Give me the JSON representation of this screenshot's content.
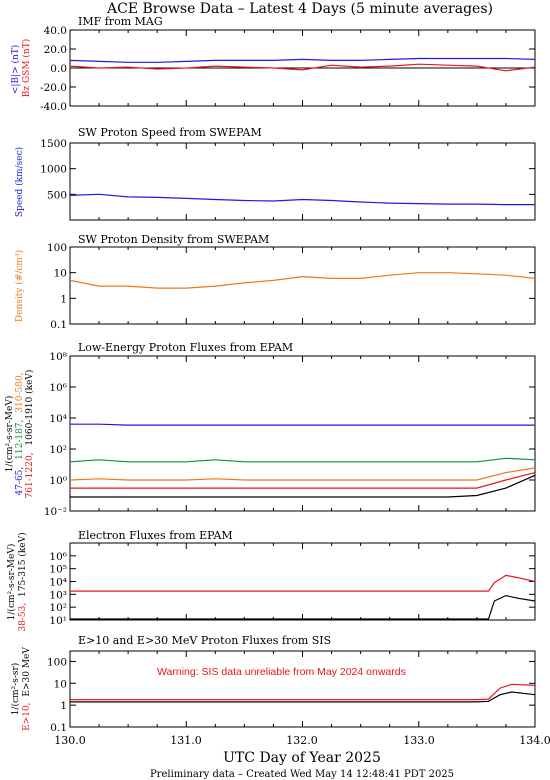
{
  "figure_title": "ACE Browse Data – Latest 4 Days (5 minute averages)",
  "x_axis": {
    "label": "UTC Day of Year 2025",
    "ticks": [
      "130.0",
      "131.0",
      "132.0",
      "133.0",
      "134.0"
    ],
    "range": [
      130.0,
      134.0
    ]
  },
  "footer": "Preliminary data – Created Wed May 14 12:48:41 PDT 2025",
  "colors": {
    "red": "#e8161a",
    "blue": "#1c1ce0",
    "orange": "#f07818",
    "green": "#0f8f38",
    "black": "#000000"
  },
  "chart_data": [
    {
      "type": "line",
      "title": "IMF from MAG",
      "ylabel": [
        "<|B|> (nT)",
        "Bz GSM (nT)"
      ],
      "yscale": "linear",
      "ylim": [
        -40,
        40
      ],
      "yticks": [
        "40.0",
        "20.0",
        "0.0",
        "-20.0",
        "-40.0"
      ],
      "zero_line": true,
      "series": [
        {
          "name": "<|B|>",
          "color": "blue",
          "x": [
            130.0,
            130.25,
            130.5,
            130.75,
            131.0,
            131.25,
            131.5,
            131.75,
            132.0,
            132.25,
            132.5,
            132.75,
            133.0,
            133.25,
            133.5,
            133.75,
            134.0
          ],
          "y": [
            8,
            7,
            6,
            6,
            7,
            8,
            8,
            8,
            9,
            8,
            8,
            9,
            10,
            10,
            10,
            10,
            9
          ]
        },
        {
          "name": "Bz GSM",
          "color": "red",
          "x": [
            130.0,
            130.25,
            130.5,
            130.75,
            131.0,
            131.25,
            131.5,
            131.75,
            132.0,
            132.25,
            132.5,
            132.75,
            133.0,
            133.25,
            133.5,
            133.75,
            134.0
          ],
          "y": [
            2,
            0,
            1,
            -1,
            0,
            2,
            1,
            0,
            -2,
            3,
            1,
            2,
            4,
            3,
            2,
            -3,
            1
          ]
        }
      ]
    },
    {
      "type": "line",
      "title": "SW Proton Speed from SWEPAM",
      "ylabel": [
        "Speed (km/sec)"
      ],
      "yscale": "linear",
      "ylim": [
        0,
        1500
      ],
      "yticks": [
        "500",
        "1000",
        "1500"
      ],
      "series": [
        {
          "name": "Speed",
          "color": "blue",
          "x": [
            130.0,
            130.25,
            130.5,
            130.75,
            131.0,
            131.25,
            131.5,
            131.75,
            132.0,
            132.25,
            132.5,
            132.75,
            133.0,
            133.25,
            133.5,
            133.75,
            134.0
          ],
          "y": [
            480,
            500,
            450,
            440,
            420,
            400,
            380,
            370,
            400,
            380,
            350,
            330,
            320,
            310,
            310,
            300,
            300
          ]
        }
      ]
    },
    {
      "type": "line",
      "title": "SW Proton Density from SWEPAM",
      "ylabel": [
        "Density (#/cm³)"
      ],
      "yscale": "log",
      "ylim": [
        0.1,
        100
      ],
      "yticks": [
        "0.1",
        "1",
        "10",
        "100"
      ],
      "series": [
        {
          "name": "Density",
          "color": "orange",
          "x": [
            130.0,
            130.25,
            130.5,
            130.75,
            131.0,
            131.25,
            131.5,
            131.75,
            132.0,
            132.25,
            132.5,
            132.75,
            133.0,
            133.25,
            133.5,
            133.75,
            134.0
          ],
          "y": [
            5,
            3,
            3,
            2.5,
            2.5,
            3,
            4,
            5,
            7,
            6,
            6,
            8,
            10,
            10,
            9,
            8,
            6
          ]
        }
      ]
    },
    {
      "type": "line",
      "title": "Low-Energy Proton Fluxes from EPAM",
      "ylabel": [
        "1/(cm²-s-sr-MeV)"
      ],
      "channel_labels": [
        "47-65,",
        "761-1220,",
        "112-187,",
        "310-580,",
        "1060-1910 (keV)"
      ],
      "yscale": "log",
      "ylim": [
        0.01,
        100000000
      ],
      "yticks": [
        "10⁻²",
        "10⁰",
        "10²",
        "10⁴",
        "10⁶",
        "10⁸"
      ],
      "series": [
        {
          "name": "47-65",
          "color": "blue",
          "x": [
            130.0,
            130.25,
            130.5,
            130.75,
            131.0,
            131.25,
            131.5,
            131.75,
            132.0,
            132.25,
            132.5,
            132.75,
            133.0,
            133.25,
            133.5,
            133.75,
            134.0
          ],
          "y": [
            4000,
            4000,
            3500,
            3500,
            3500,
            3500,
            3500,
            3500,
            3500,
            3500,
            3500,
            3500,
            3500,
            3500,
            3500,
            3500,
            3500
          ]
        },
        {
          "name": "112-187",
          "color": "green",
          "x": [
            130.0,
            130.25,
            130.5,
            130.75,
            131.0,
            131.25,
            131.5,
            131.75,
            132.0,
            132.25,
            132.5,
            132.75,
            133.0,
            133.25,
            133.5,
            133.75,
            134.0
          ],
          "y": [
            15,
            20,
            15,
            15,
            15,
            20,
            15,
            15,
            15,
            15,
            15,
            15,
            15,
            15,
            15,
            25,
            20
          ]
        },
        {
          "name": "310-580",
          "color": "orange",
          "x": [
            130.0,
            130.25,
            130.5,
            130.75,
            131.0,
            131.25,
            131.5,
            131.75,
            132.0,
            132.25,
            132.5,
            132.75,
            133.0,
            133.25,
            133.5,
            133.75,
            134.0
          ],
          "y": [
            1,
            1.2,
            1,
            1,
            1,
            1.2,
            1,
            1,
            1,
            1,
            1,
            1,
            1,
            1,
            1,
            3,
            6
          ]
        },
        {
          "name": "761-1220",
          "color": "red",
          "x": [
            130.0,
            130.25,
            130.5,
            130.75,
            131.0,
            131.25,
            131.5,
            131.75,
            132.0,
            132.25,
            132.5,
            132.75,
            133.0,
            133.25,
            133.5,
            133.75,
            134.0
          ],
          "y": [
            0.3,
            0.3,
            0.3,
            0.3,
            0.3,
            0.3,
            0.3,
            0.3,
            0.3,
            0.3,
            0.3,
            0.3,
            0.3,
            0.3,
            0.3,
            1,
            3
          ]
        },
        {
          "name": "1060-1910",
          "color": "black",
          "x": [
            130.0,
            130.25,
            130.5,
            130.75,
            131.0,
            131.25,
            131.5,
            131.75,
            132.0,
            132.25,
            132.5,
            132.75,
            133.0,
            133.25,
            133.5,
            133.75,
            134.0
          ],
          "y": [
            0.08,
            0.08,
            0.08,
            0.08,
            0.08,
            0.08,
            0.08,
            0.08,
            0.08,
            0.08,
            0.08,
            0.08,
            0.08,
            0.08,
            0.1,
            0.3,
            2
          ]
        }
      ]
    },
    {
      "type": "line",
      "title": "Electron Fluxes from EPAM",
      "ylabel": [
        "1/(cm²-s-sr-MeV)"
      ],
      "channel_labels": [
        "38-53,",
        "175-315 (keV)"
      ],
      "yscale": "log",
      "ylim": [
        10,
        10000000
      ],
      "yticks": [
        "10¹",
        "10²",
        "10³",
        "10⁴",
        "10⁵",
        "10⁶"
      ],
      "series": [
        {
          "name": "38-53",
          "color": "red",
          "x": [
            130.0,
            130.25,
            130.5,
            130.75,
            131.0,
            131.25,
            131.5,
            131.75,
            132.0,
            132.25,
            132.5,
            132.75,
            133.0,
            133.25,
            133.5,
            133.6,
            133.65,
            133.75,
            133.85,
            134.0
          ],
          "y": [
            1800,
            1800,
            1800,
            1800,
            1800,
            1800,
            1800,
            1800,
            1800,
            1800,
            1800,
            1800,
            1800,
            1800,
            1800,
            1800,
            8000,
            30000,
            20000,
            10000
          ]
        },
        {
          "name": "175-315",
          "color": "black",
          "x": [
            130.0,
            130.25,
            130.5,
            130.75,
            131.0,
            131.25,
            131.5,
            131.75,
            132.0,
            132.25,
            132.5,
            132.75,
            133.0,
            133.25,
            133.5,
            133.6,
            133.65,
            133.75,
            133.85,
            134.0
          ],
          "y": [
            12,
            12,
            12,
            12,
            12,
            12,
            12,
            12,
            12,
            12,
            12,
            12,
            12,
            12,
            12,
            12,
            300,
            800,
            500,
            300
          ]
        }
      ]
    },
    {
      "type": "line",
      "title": "E>10 and E>30 MeV Proton Fluxes from SIS",
      "ylabel": [
        "1/(cm²-s-sr)"
      ],
      "channel_labels": [
        "E>10,",
        "E>30 MeV"
      ],
      "annotation": "Warning: SIS data unreliable from May 2024 onwards",
      "yscale": "log",
      "ylim": [
        0.1,
        300
      ],
      "yticks": [
        "0.1",
        "1",
        "10",
        "100"
      ],
      "series": [
        {
          "name": "E>10",
          "color": "red",
          "x": [
            130.0,
            130.5,
            131.0,
            131.5,
            132.0,
            132.5,
            133.0,
            133.5,
            133.6,
            133.7,
            133.8,
            134.0
          ],
          "y": [
            1.8,
            1.8,
            1.8,
            1.8,
            1.8,
            1.8,
            1.8,
            1.8,
            1.9,
            6,
            9,
            8
          ]
        },
        {
          "name": "E>30",
          "color": "black",
          "x": [
            130.0,
            130.5,
            131.0,
            131.5,
            132.0,
            132.5,
            133.0,
            133.5,
            133.6,
            133.7,
            133.8,
            134.0
          ],
          "y": [
            1.4,
            1.4,
            1.4,
            1.4,
            1.4,
            1.4,
            1.4,
            1.4,
            1.5,
            3,
            4,
            3
          ]
        }
      ]
    }
  ]
}
